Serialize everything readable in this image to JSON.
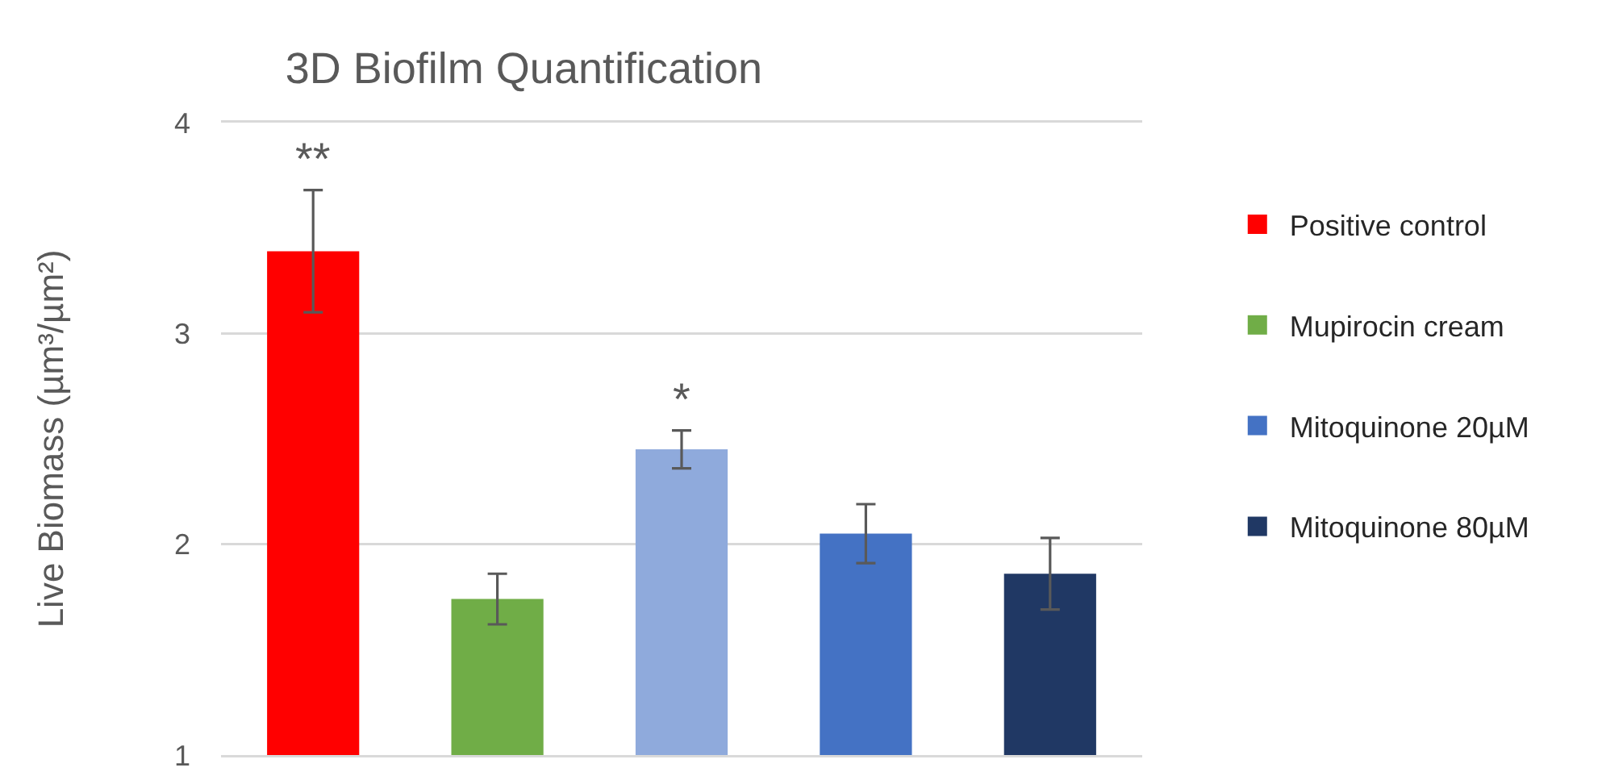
{
  "chart_data": {
    "type": "bar",
    "title": "3D Biofilm Quantification",
    "ylabel": "Live Biomass (µm³/µm²)",
    "categories": [
      null
    ],
    "series": [
      {
        "name": "Positive control",
        "color": "#ff0000",
        "values": [
          3.39
        ],
        "errors": [
          0.29
        ],
        "value_labels": [
          "**"
        ]
      },
      {
        "name": "Mupirocin cream",
        "color": "#70ad47",
        "values": [
          1.74
        ],
        "errors": [
          0.12
        ]
      },
      {
        "color": "#8faadc",
        "values": [
          2.45
        ],
        "errors": [
          0.09
        ],
        "value_labels": [
          "*"
        ]
      },
      {
        "name": "Mitoquinone 20µM",
        "color": "#4472c4",
        "values": [
          2.05
        ],
        "errors": [
          0.14
        ]
      },
      {
        "name": "Mitoquinone 80µM",
        "color": "#203864",
        "values": [
          1.86
        ],
        "errors": [
          0.17
        ]
      }
    ],
    "ylim": [
      1,
      4
    ],
    "yticks": [
      1,
      2,
      3,
      4
    ],
    "grid": "y",
    "legend": "right"
  }
}
